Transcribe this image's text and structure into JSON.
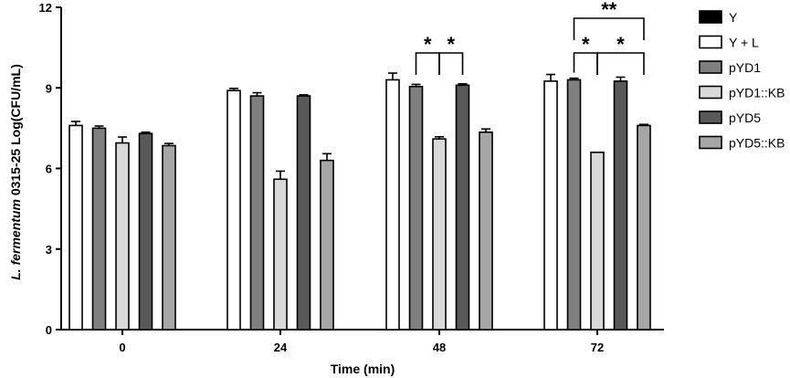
{
  "chart_data": {
    "type": "bar",
    "xlabel": "Time (min)",
    "ylabel_italic": "L. fermentum",
    "ylabel_rest": " 0315-25 Log(CFU/mL)",
    "ylim": [
      0,
      12
    ],
    "yticks": [
      0,
      3,
      6,
      9,
      12
    ],
    "categories": [
      "0",
      "24",
      "48",
      "72"
    ],
    "grid": false,
    "legend_position": "right",
    "series": [
      {
        "name": "Y",
        "color": "#000000",
        "values": [
          null,
          null,
          null,
          null
        ],
        "errors": [
          null,
          null,
          null,
          null
        ]
      },
      {
        "name": "Y + L",
        "color": "#ffffff",
        "values": [
          7.6,
          8.9,
          9.3,
          9.25
        ],
        "errors": [
          0.15,
          0.08,
          0.25,
          0.25
        ]
      },
      {
        "name": "pYD1",
        "color": "#7f7f7f",
        "values": [
          7.5,
          8.7,
          9.05,
          9.3
        ],
        "errors": [
          0.08,
          0.12,
          0.08,
          0.06
        ]
      },
      {
        "name": "pYD1::KB",
        "color": "#d9d9d9",
        "values": [
          6.95,
          5.6,
          7.1,
          6.6
        ],
        "errors": [
          0.22,
          0.3,
          0.08,
          0.0
        ]
      },
      {
        "name": "pYD5",
        "color": "#595959",
        "values": [
          7.3,
          8.7,
          9.1,
          9.25
        ],
        "errors": [
          0.05,
          0.04,
          0.05,
          0.15
        ]
      },
      {
        "name": "pYD5::KB",
        "color": "#a6a6a6",
        "values": [
          6.85,
          6.3,
          7.35,
          7.6
        ],
        "errors": [
          0.08,
          0.25,
          0.12,
          0.04
        ]
      }
    ],
    "significance": [
      {
        "category": "48",
        "from_series": 2,
        "to_series": 3,
        "label": "*",
        "level": 1
      },
      {
        "category": "48",
        "from_series": 3,
        "to_series": 4,
        "label": "*",
        "level": 1
      },
      {
        "category": "72",
        "from_series": 2,
        "to_series": 3,
        "label": "*",
        "level": 1
      },
      {
        "category": "72",
        "from_series": 3,
        "to_series": 5,
        "label": "*",
        "level": 1
      },
      {
        "category": "72",
        "from_series": 2,
        "to_series": 5,
        "label": "**",
        "level": 2
      }
    ]
  }
}
